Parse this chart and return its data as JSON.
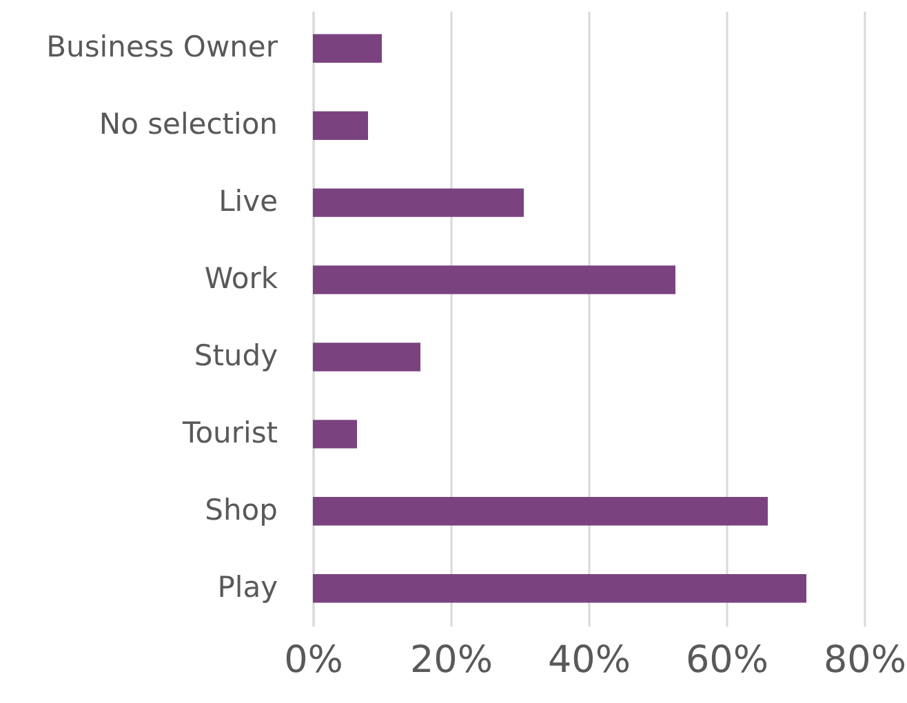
{
  "chart_data": {
    "type": "bar",
    "orientation": "horizontal",
    "categories": [
      "Business Owner",
      "No selection",
      "Live",
      "Work",
      "Study",
      "Tourist",
      "Shop",
      "Play"
    ],
    "values": [
      10,
      8,
      30.6,
      52.6,
      15.6,
      6.4,
      66,
      71.6
    ],
    "color": "#7b4280",
    "xlim": [
      0,
      80
    ],
    "xticks": [
      {
        "value": 0,
        "label": "0%"
      },
      {
        "value": 20,
        "label": "20%"
      },
      {
        "value": 40,
        "label": "40%"
      },
      {
        "value": 60,
        "label": "60%"
      },
      {
        "value": 80,
        "label": "80%"
      }
    ],
    "grid": "x"
  }
}
